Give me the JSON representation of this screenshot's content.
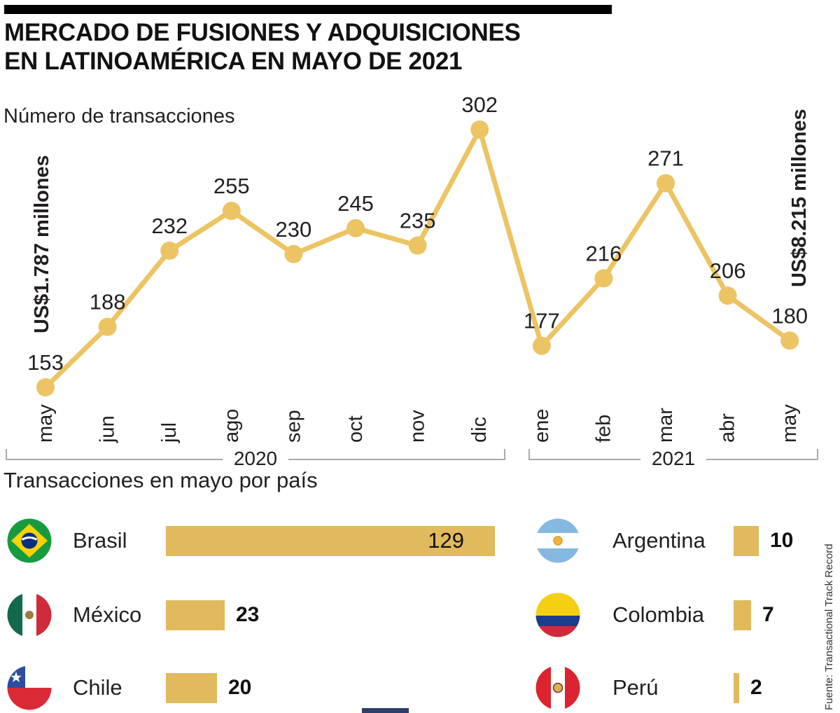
{
  "header": {
    "title_line1": "MERCADO DE FUSIONES Y ADQUISICIONES",
    "title_line2": "EN LATINOAMÉRICA EN MAYO DE 2021"
  },
  "chart_data": {
    "type": "line",
    "title": "Número de transacciones",
    "x": [
      "may",
      "jun",
      "jul",
      "ago",
      "sep",
      "oct",
      "nov",
      "dic",
      "ene",
      "feb",
      "mar",
      "abr",
      "may"
    ],
    "values": [
      153,
      188,
      232,
      255,
      230,
      245,
      235,
      302,
      177,
      216,
      271,
      206,
      180
    ],
    "ylim": [
      140,
      320
    ],
    "grid": false,
    "line_color": "#edc463",
    "left_annotation": "US$1.787 millones",
    "right_annotation": "US$8.215 millones",
    "year_groups": [
      {
        "label": "2020",
        "months": [
          "may",
          "jun",
          "jul",
          "ago",
          "sep",
          "oct",
          "nov",
          "dic"
        ]
      },
      {
        "label": "2021",
        "months": [
          "ene",
          "feb",
          "mar",
          "abr",
          "may"
        ]
      }
    ]
  },
  "section2": {
    "title": "Transacciones en mayo por país",
    "bar_color": "#e0ba5c",
    "countries": [
      {
        "name": "Brasil",
        "value": 129
      },
      {
        "name": "México",
        "value": 23
      },
      {
        "name": "Chile",
        "value": 20
      },
      {
        "name": "Argentina",
        "value": 10
      },
      {
        "name": "Colombia",
        "value": 7
      },
      {
        "name": "Perú",
        "value": 2
      }
    ]
  },
  "source": "Fuente: Transactional Track Record"
}
